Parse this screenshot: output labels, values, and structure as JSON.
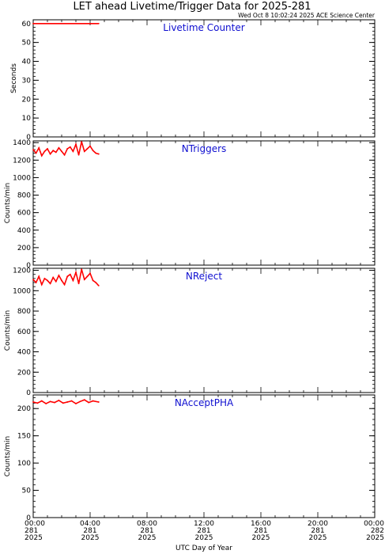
{
  "header": {
    "title": "LET ahead Livetime/Trigger Data for 2025-281",
    "timestamp": "Wed Oct  8 10:02:24 2025 ACE Science Center"
  },
  "x_axis": {
    "label": "UTC Day of Year",
    "ticks": [
      {
        "time": "00:00",
        "doy": "281",
        "year": "2025"
      },
      {
        "time": "04:00",
        "doy": "281",
        "year": "2025"
      },
      {
        "time": "08:00",
        "doy": "281",
        "year": "2025"
      },
      {
        "time": "12:00",
        "doy": "281",
        "year": "2025"
      },
      {
        "time": "16:00",
        "doy": "281",
        "year": "2025"
      },
      {
        "time": "20:00",
        "doy": "281",
        "year": "2025"
      },
      {
        "time": "00:00",
        "doy": "282",
        "year": "2025"
      }
    ]
  },
  "colors": {
    "series": "#ff0000",
    "panel_label": "#1010d0",
    "axes": "#000000"
  },
  "chart_data": [
    {
      "type": "line",
      "title": "Livetime Counter",
      "ylabel": "Seconds",
      "ylim": [
        0,
        62
      ],
      "yticks": [
        0,
        10,
        20,
        30,
        40,
        50,
        60
      ],
      "xlim": [
        0,
        24
      ],
      "x_unit": "hours",
      "series": [
        {
          "x": [
            0.0,
            4.6
          ],
          "values": [
            60,
            60
          ]
        }
      ]
    },
    {
      "type": "line",
      "title": "NTriggers",
      "ylabel": "Counts/min",
      "ylim": [
        0,
        1420
      ],
      "yticks": [
        0,
        200,
        400,
        600,
        800,
        1000,
        1200,
        1400
      ],
      "xlim": [
        0,
        24
      ],
      "x_unit": "hours",
      "series": [
        {
          "x": [
            0.0,
            0.2,
            0.4,
            0.6,
            0.8,
            1.0,
            1.2,
            1.4,
            1.6,
            1.8,
            2.0,
            2.2,
            2.4,
            2.6,
            2.8,
            3.0,
            3.2,
            3.4,
            3.6,
            3.8,
            4.0,
            4.2,
            4.4,
            4.6
          ],
          "values": [
            1320,
            1280,
            1340,
            1250,
            1300,
            1330,
            1270,
            1310,
            1290,
            1340,
            1300,
            1260,
            1330,
            1350,
            1300,
            1380,
            1260,
            1410,
            1300,
            1330,
            1360,
            1310,
            1280,
            1270
          ]
        }
      ]
    },
    {
      "type": "line",
      "title": "NReject",
      "ylabel": "Counts/min",
      "ylim": [
        0,
        1220
      ],
      "yticks": [
        0,
        200,
        400,
        600,
        800,
        1000,
        1200
      ],
      "xlim": [
        0,
        24
      ],
      "x_unit": "hours",
      "series": [
        {
          "x": [
            0.0,
            0.2,
            0.4,
            0.6,
            0.8,
            1.0,
            1.2,
            1.4,
            1.6,
            1.8,
            2.0,
            2.2,
            2.4,
            2.6,
            2.8,
            3.0,
            3.2,
            3.4,
            3.6,
            3.8,
            4.0,
            4.2,
            4.4,
            4.6
          ],
          "values": [
            1110,
            1080,
            1140,
            1060,
            1120,
            1100,
            1070,
            1130,
            1090,
            1150,
            1100,
            1060,
            1140,
            1160,
            1100,
            1180,
            1070,
            1210,
            1110,
            1140,
            1170,
            1100,
            1080,
            1050
          ]
        }
      ]
    },
    {
      "type": "line",
      "title": "NAcceptPHA",
      "ylabel": "Counts/min",
      "ylim": [
        0,
        225
      ],
      "yticks": [
        0,
        50,
        100,
        150,
        200
      ],
      "xlim": [
        0,
        24
      ],
      "x_unit": "hours",
      "series": [
        {
          "x": [
            0.0,
            0.3,
            0.6,
            0.9,
            1.2,
            1.5,
            1.8,
            2.1,
            2.4,
            2.7,
            3.0,
            3.3,
            3.6,
            3.9,
            4.2,
            4.6
          ],
          "values": [
            212,
            210,
            214,
            209,
            213,
            211,
            215,
            210,
            212,
            214,
            209,
            213,
            216,
            211,
            214,
            212
          ]
        }
      ]
    }
  ]
}
